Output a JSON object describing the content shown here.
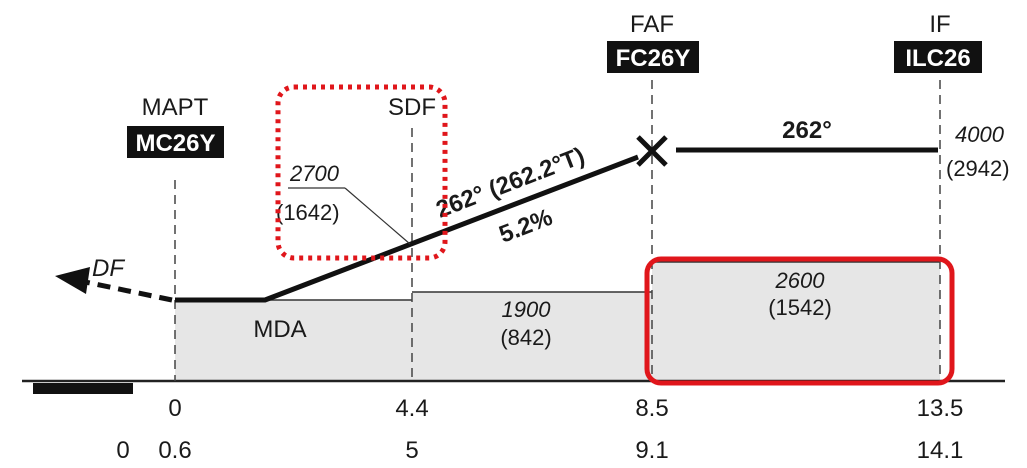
{
  "fixes": {
    "mapt": {
      "role": "MAPT",
      "id": "MC26Y"
    },
    "sdf": {
      "role": "SDF"
    },
    "faf": {
      "role": "FAF",
      "id": "FC26Y"
    },
    "if": {
      "role": "IF",
      "id": "ILC26"
    }
  },
  "course": {
    "final": "262° (262.2°T)",
    "gradient": "5.2%",
    "intermediate": "262°"
  },
  "departure_label": "DF",
  "mda_label": "MDA",
  "altitudes": {
    "sdf": {
      "msl": "2700",
      "hat": "(1642)"
    },
    "if": {
      "msl": "4000",
      "hat": "(2942)"
    },
    "seg_sdf_faf": {
      "msl": "1900",
      "hat": "(842)"
    },
    "seg_faf_if": {
      "msl": "2600",
      "hat": "(1542)"
    }
  },
  "distance_scale_1": [
    "0",
    "4.4",
    "8.5",
    "13.5"
  ],
  "distance_scale_2": [
    "0",
    "0.6",
    "5",
    "9.1",
    "14.1"
  ],
  "highlight_colors": {
    "dotted": "#e0161b",
    "solid": "#e0161b"
  }
}
